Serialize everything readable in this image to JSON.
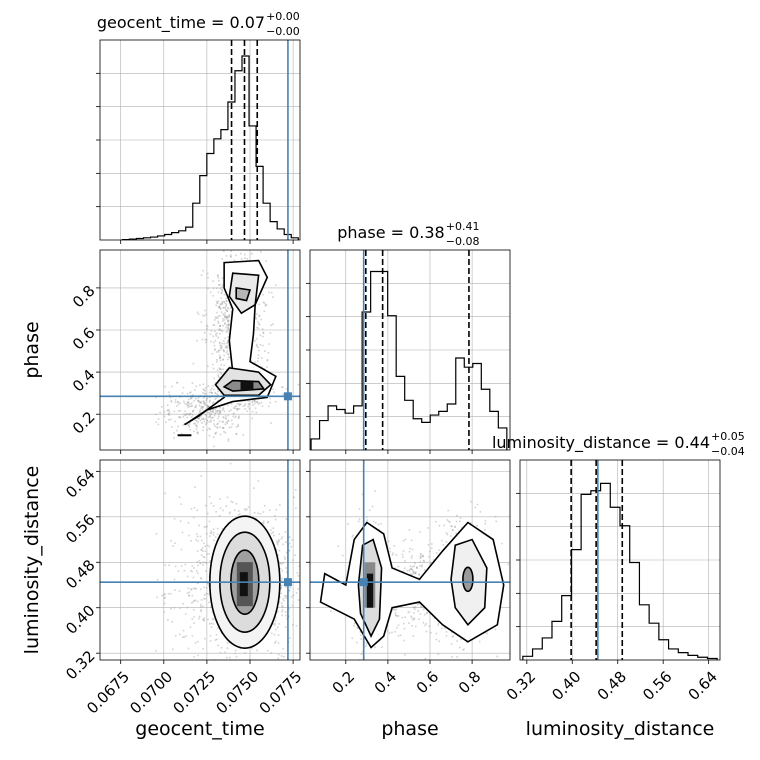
{
  "chart_data": {
    "type": "corner",
    "parameters": [
      "geocent_time",
      "phase",
      "luminosity_distance"
    ],
    "truth": {
      "geocent_time": 0.0772,
      "phase": 0.285,
      "luminosity_distance": 0.445
    },
    "ranges": {
      "geocent_time": [
        0.0663,
        0.0779
      ],
      "phase": [
        0.03,
        0.98
      ],
      "luminosity_distance": [
        0.308,
        0.66
      ]
    },
    "axis_ticks": {
      "geocent_time": [
        "0.0675",
        "0.0700",
        "0.0725",
        "0.0750",
        "0.0775"
      ],
      "phase": [
        "0.2",
        "0.4",
        "0.6",
        "0.8"
      ],
      "luminosity_distance": [
        "0.32",
        "0.40",
        "0.48",
        "0.56",
        "0.64"
      ]
    },
    "titles": [
      {
        "text": "geocent_time = 0.07",
        "sup": "+0.00",
        "sub": "−0.00"
      },
      {
        "text": "phase = 0.38",
        "sup": "+0.41",
        "sub": "−0.08"
      },
      {
        "text": "luminosity_distance = 0.44",
        "sup": "+0.05",
        "sub": "−0.04"
      }
    ],
    "quantiles": {
      "geocent_time": [
        0.07393,
        0.07468,
        0.07542
      ],
      "phase": [
        0.295,
        0.375,
        0.785
      ],
      "luminosity_distance": [
        0.398,
        0.442,
        0.488
      ]
    },
    "hist_1d": {
      "geocent_time": [
        0.002,
        0.005,
        0.008,
        0.012,
        0.016,
        0.022,
        0.03,
        0.04,
        0.05,
        0.07,
        0.2,
        0.35,
        0.47,
        0.55,
        0.6,
        0.75,
        0.92,
        1.0,
        0.62,
        0.4,
        0.2,
        0.1,
        0.06,
        0.03,
        0.012
      ],
      "phase": [
        0.06,
        0.16,
        0.24,
        0.22,
        0.2,
        0.24,
        0.75,
        0.97,
        0.97,
        0.73,
        0.4,
        0.27,
        0.17,
        0.15,
        0.19,
        0.21,
        0.25,
        0.5,
        0.45,
        0.47,
        0.33,
        0.21,
        0.12
      ],
      "luminosity_distance": [
        0.02,
        0.06,
        0.12,
        0.21,
        0.35,
        0.6,
        0.9,
        0.92,
        0.96,
        0.83,
        0.73,
        0.53,
        0.3,
        0.2,
        0.11,
        0.06,
        0.04,
        0.025,
        0.015,
        0.008
      ]
    },
    "xlabels": [
      "geocent_time",
      "phase",
      "luminosity_distance"
    ],
    "ylabels": [
      "phase",
      "luminosity_distance"
    ],
    "colors": {
      "truth": "#4682b4",
      "hist": "#000000",
      "samples": "#9e9e9e",
      "grid": "#b0b0b0"
    },
    "grid": true
  }
}
